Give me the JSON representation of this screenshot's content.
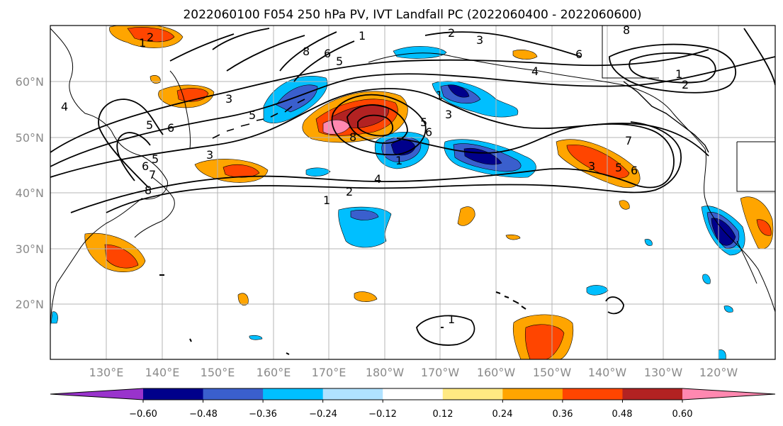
{
  "title": "2022060100 F054 250 hPa PV, IVT Landfall PC (2022060400 - 2022060600)",
  "map": {
    "lon_labels": [
      "130°E",
      "140°E",
      "150°E",
      "160°E",
      "170°E",
      "180°W",
      "170°W",
      "160°W",
      "150°W",
      "140°W",
      "130°W",
      "120°W"
    ],
    "lat_labels": [
      "60°N",
      "50°N",
      "40°N",
      "30°N",
      "20°N"
    ],
    "pv_contour_labels": [
      "1",
      "2",
      "3",
      "4",
      "5",
      "6",
      "7",
      "8"
    ]
  },
  "colorbar": {
    "tick_labels": [
      "−0.60",
      "−0.48",
      "−0.36",
      "−0.24",
      "−0.12",
      "0.12",
      "0.24",
      "0.36",
      "0.48",
      "0.60"
    ],
    "colors": [
      "#9933cc",
      "#00008b",
      "#3a5fcd",
      "#00bfff",
      "#b0e2ff",
      "#ffffff",
      "#ffe982",
      "#ffa500",
      "#ff4500",
      "#b22222",
      "#ff88b0"
    ],
    "extend": "both"
  }
}
